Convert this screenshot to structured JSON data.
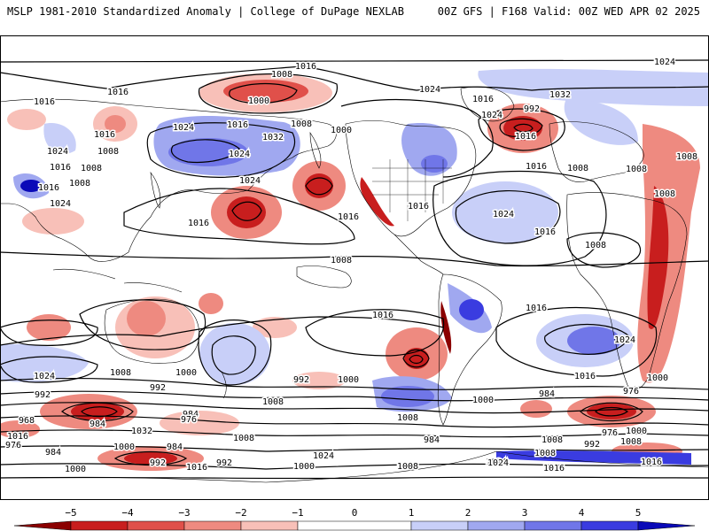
{
  "header": {
    "left": "MSLP 1981-2010 Standardized Anomaly | College of DuPage NEXLAB",
    "right": "00Z GFS | F168 Valid: 00Z WED APR 02 2025"
  },
  "colors": {
    "neg5": "#8b0000",
    "neg4": "#c81e1e",
    "neg3": "#e0504a",
    "neg2": "#ee8a80",
    "neg1": "#f8c0b8",
    "pos1": "#c8cff8",
    "pos2": "#a0a8f0",
    "pos3": "#7076e8",
    "pos4": "#3a3ce0",
    "pos5": "#0a0ab8",
    "land": "#ffffff",
    "contour": "#000000"
  },
  "colorbar": {
    "ticks": [
      "−5",
      "−4",
      "−3",
      "−2",
      "−1",
      "0",
      "1",
      "2",
      "3",
      "4",
      "5"
    ]
  },
  "contour_labels": [
    {
      "id": "l1",
      "text": "1016"
    },
    {
      "id": "l2",
      "text": "1024"
    },
    {
      "id": "l3",
      "text": "1016"
    },
    {
      "id": "l4",
      "text": "1008"
    },
    {
      "id": "l5",
      "text": "1000"
    },
    {
      "id": "l6",
      "text": "1016"
    },
    {
      "id": "l7",
      "text": "1024"
    },
    {
      "id": "l8",
      "text": "1016"
    },
    {
      "id": "l9",
      "text": "1032"
    },
    {
      "id": "l10",
      "text": "1016"
    },
    {
      "id": "l11",
      "text": "1008"
    },
    {
      "id": "l12",
      "text": "1024"
    },
    {
      "id": "l13",
      "text": "1024"
    },
    {
      "id": "l14",
      "text": "1032"
    },
    {
      "id": "l15",
      "text": "1016"
    },
    {
      "id": "l16",
      "text": "1008"
    },
    {
      "id": "l17",
      "text": "1000"
    },
    {
      "id": "l18",
      "text": "992"
    },
    {
      "id": "l19",
      "text": "1016"
    },
    {
      "id": "l20",
      "text": "1008"
    },
    {
      "id": "l21",
      "text": "1016"
    },
    {
      "id": "l22",
      "text": "1008"
    },
    {
      "id": "l23",
      "text": "1024"
    },
    {
      "id": "l24",
      "text": "1016"
    },
    {
      "id": "l25",
      "text": "1024"
    },
    {
      "id": "l26",
      "text": "1008"
    },
    {
      "id": "l27",
      "text": "1024"
    },
    {
      "id": "l28",
      "text": "1016"
    },
    {
      "id": "l29",
      "text": "1008"
    },
    {
      "id": "l30",
      "text": "1016"
    },
    {
      "id": "l31",
      "text": "1016"
    },
    {
      "id": "l32",
      "text": "1024"
    },
    {
      "id": "l33",
      "text": "1008"
    },
    {
      "id": "l34",
      "text": "1008"
    },
    {
      "id": "l35",
      "text": "1008"
    },
    {
      "id": "l36",
      "text": "1016"
    },
    {
      "id": "l37",
      "text": "1016"
    },
    {
      "id": "l38",
      "text": "1016"
    },
    {
      "id": "l39",
      "text": "1024"
    },
    {
      "id": "l40",
      "text": "1024"
    },
    {
      "id": "l41",
      "text": "1016"
    },
    {
      "id": "l42",
      "text": "1008"
    },
    {
      "id": "l43",
      "text": "1000"
    },
    {
      "id": "l44",
      "text": "992"
    },
    {
      "id": "l45",
      "text": "1024"
    },
    {
      "id": "l46",
      "text": "1008"
    },
    {
      "id": "l47",
      "text": "992"
    },
    {
      "id": "l48",
      "text": "1000"
    },
    {
      "id": "l49",
      "text": "1008"
    },
    {
      "id": "l50",
      "text": "1000"
    },
    {
      "id": "l51",
      "text": "1016"
    },
    {
      "id": "l52",
      "text": "992"
    },
    {
      "id": "l53",
      "text": "984"
    },
    {
      "id": "l54",
      "text": "1008"
    },
    {
      "id": "l55",
      "text": "1000"
    },
    {
      "id": "l56",
      "text": "984"
    },
    {
      "id": "l57",
      "text": "976"
    },
    {
      "id": "l58",
      "text": "968"
    },
    {
      "id": "l59",
      "text": "984"
    },
    {
      "id": "l60",
      "text": "1016"
    },
    {
      "id": "l61",
      "text": "976"
    },
    {
      "id": "l62",
      "text": "1008"
    },
    {
      "id": "l63",
      "text": "1032"
    },
    {
      "id": "l64",
      "text": "984"
    },
    {
      "id": "l65",
      "text": "976"
    },
    {
      "id": "l66",
      "text": "1000"
    },
    {
      "id": "l67",
      "text": "992"
    },
    {
      "id": "l68",
      "text": "984"
    },
    {
      "id": "l69",
      "text": "1008"
    },
    {
      "id": "l70",
      "text": "1024"
    },
    {
      "id": "l71",
      "text": "1000"
    },
    {
      "id": "l72",
      "text": "984"
    },
    {
      "id": "l73",
      "text": "992"
    },
    {
      "id": "l74",
      "text": "992"
    },
    {
      "id": "l75",
      "text": "976"
    },
    {
      "id": "l76",
      "text": "1000"
    },
    {
      "id": "l77",
      "text": "1008"
    },
    {
      "id": "l78",
      "text": "1016"
    },
    {
      "id": "l79",
      "text": "1008"
    },
    {
      "id": "l80",
      "text": "1024"
    },
    {
      "id": "l81",
      "text": "1000"
    },
    {
      "id": "l82",
      "text": "1016"
    },
    {
      "id": "l83",
      "text": "1008"
    },
    {
      "id": "l84",
      "text": "1016"
    },
    {
      "id": "l85",
      "text": "1024"
    }
  ]
}
